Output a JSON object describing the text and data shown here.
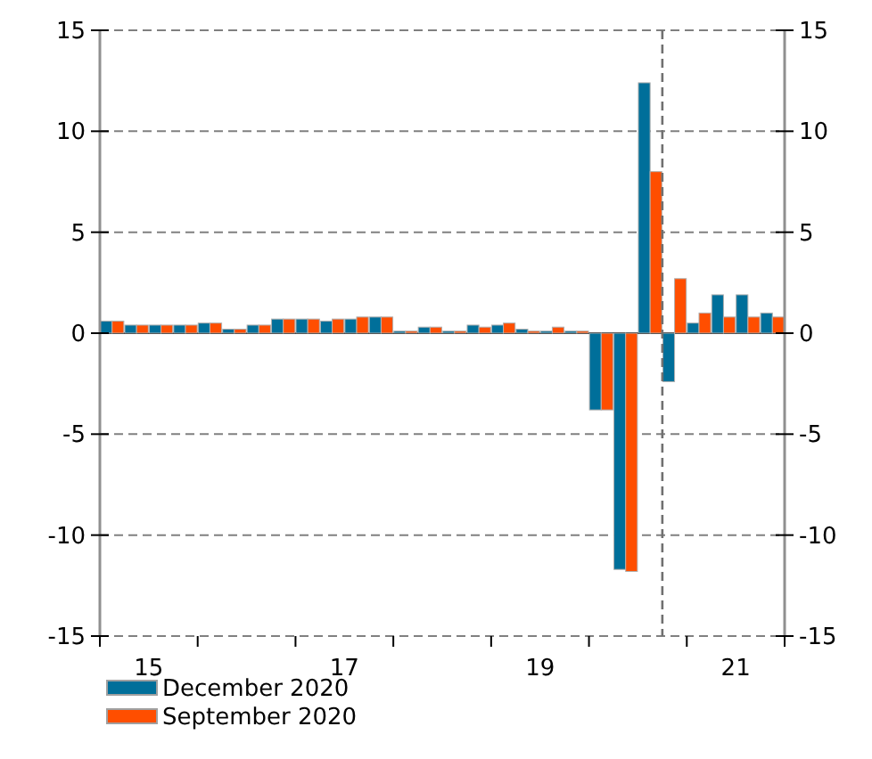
{
  "chart_data": {
    "type": "bar",
    "x": [
      15.125,
      15.375,
      15.625,
      15.875,
      16.125,
      16.375,
      16.625,
      16.875,
      17.125,
      17.375,
      17.625,
      17.875,
      18.125,
      18.375,
      18.625,
      18.875,
      19.125,
      19.375,
      19.625,
      19.875,
      20.125,
      20.375,
      20.625,
      20.875,
      21.125,
      21.375,
      21.625,
      21.875
    ],
    "series": [
      {
        "name": "December 2020",
        "color": "#006f9a",
        "values": [
          0.6,
          0.4,
          0.4,
          0.4,
          0.5,
          0.2,
          0.4,
          0.7,
          0.7,
          0.6,
          0.7,
          0.8,
          0.1,
          0.3,
          0.1,
          0.4,
          0.4,
          0.2,
          0.1,
          0.1,
          -3.8,
          -11.7,
          12.4,
          -2.4,
          0.5,
          1.9,
          1.9,
          1.0
        ]
      },
      {
        "name": "September 2020",
        "color": "#ff4e00",
        "values": [
          0.6,
          0.4,
          0.4,
          0.4,
          0.5,
          0.2,
          0.4,
          0.7,
          0.7,
          0.7,
          0.8,
          0.8,
          0.1,
          0.3,
          0.1,
          0.3,
          0.5,
          0.1,
          0.3,
          0.1,
          -3.8,
          -11.8,
          8.0,
          2.7,
          1.0,
          0.8,
          0.8,
          0.8
        ]
      }
    ],
    "xlim": [
      15,
      22
    ],
    "xticks": [
      {
        "value": 15,
        "label": null
      },
      {
        "value": 15.5,
        "label": "15"
      },
      {
        "value": 16,
        "label": null
      },
      {
        "value": 17,
        "label": null
      },
      {
        "value": 17.5,
        "label": "17"
      },
      {
        "value": 18,
        "label": null
      },
      {
        "value": 19,
        "label": null
      },
      {
        "value": 19.5,
        "label": "19"
      },
      {
        "value": 20,
        "label": null
      },
      {
        "value": 21,
        "label": null
      },
      {
        "value": 21.5,
        "label": "21"
      },
      {
        "value": 22,
        "label": null
      }
    ],
    "ylim": [
      -15,
      15
    ],
    "yticks": [
      -15,
      -10,
      -5,
      0,
      5,
      10,
      15
    ],
    "y2lim": [
      -15,
      15
    ],
    "y2ticks": [
      -15,
      -10,
      -5,
      0,
      5,
      10,
      15
    ],
    "ref_lines": [
      {
        "axis": "x",
        "value": 20.75,
        "line_style": "dashed",
        "color": "#707070"
      }
    ],
    "grid": "y",
    "legend": "bottom left"
  }
}
